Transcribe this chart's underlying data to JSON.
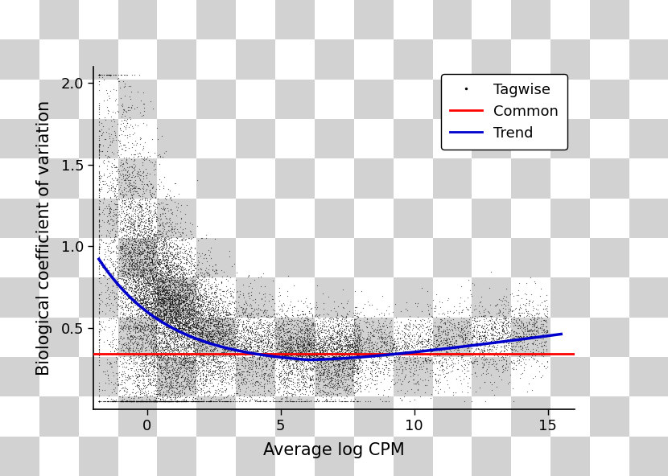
{
  "title": "",
  "xlabel": "Average log CPM",
  "ylabel": "Biological coefficient of variation",
  "xlim": [
    -2,
    16
  ],
  "ylim": [
    0.0,
    2.1
  ],
  "xticks": [
    0,
    5,
    10,
    15
  ],
  "yticks": [
    0.5,
    1.0,
    1.5,
    2.0
  ],
  "common_y": 0.34,
  "common_color": "#FF0000",
  "trend_color": "#0000CC",
  "scatter_color": "#000000",
  "scatter_alpha": 0.6,
  "scatter_size": 0.8,
  "n_points": 20000,
  "checker_light": "#FFFFFF",
  "checker_dark": "#D3D3D3",
  "checker_size": 50,
  "plot_bg": "#E8E8E8",
  "legend_labels": [
    "Tagwise",
    "Common",
    "Trend"
  ],
  "trend_start_y": 0.75,
  "trend_min_y": 0.27,
  "trend_min_x": 7.0,
  "trend_end_y": 0.5,
  "common_linewidth": 2.0,
  "trend_linewidth": 2.5
}
